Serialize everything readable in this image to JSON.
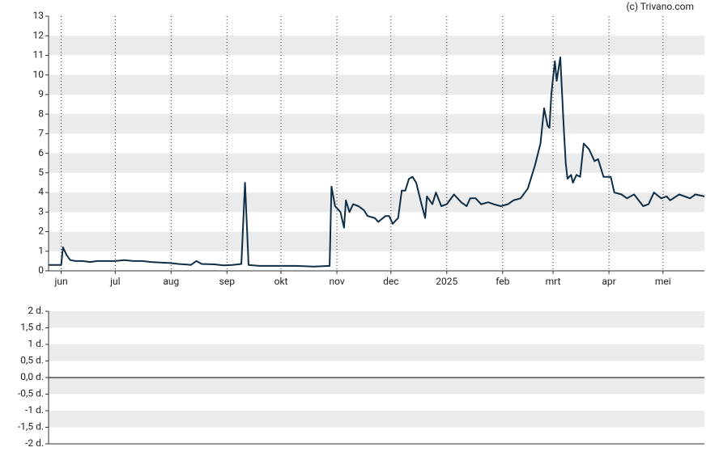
{
  "chart_data": [
    {
      "type": "line",
      "credit": "(c) Trivano.com",
      "x": [
        -7,
        -2,
        0,
        1,
        3,
        5,
        8,
        12,
        16,
        20,
        25,
        30,
        35,
        40,
        45,
        50,
        55,
        60,
        65,
        70,
        72,
        75,
        78,
        85,
        90,
        95,
        100,
        102,
        104,
        110,
        120,
        130,
        140,
        149,
        150,
        152,
        155,
        157,
        158,
        160,
        162,
        165,
        168,
        170,
        174,
        176,
        180,
        182,
        184,
        187,
        189,
        191,
        193,
        195,
        197,
        200,
        202,
        203,
        206,
        208,
        211,
        214,
        218,
        222,
        225,
        227,
        230,
        233,
        237,
        240,
        244,
        248,
        251,
        255,
        259,
        263,
        266,
        268,
        270,
        271,
        272,
        274,
        275,
        277,
        279,
        280,
        281,
        283,
        284,
        286,
        288,
        290,
        293,
        296,
        298,
        301,
        305,
        307,
        311,
        314,
        318,
        323,
        326,
        329,
        333,
        336,
        338,
        343,
        349,
        352,
        357
      ],
      "series": [
        {
          "color": "#0f2f48",
          "values": [
            0.3,
            0.3,
            0.3,
            1.2,
            0.8,
            0.55,
            0.5,
            0.5,
            0.45,
            0.5,
            0.5,
            0.5,
            0.55,
            0.5,
            0.5,
            0.45,
            0.42,
            0.4,
            0.35,
            0.32,
            0.3,
            0.5,
            0.35,
            0.33,
            0.28,
            0.3,
            0.35,
            4.5,
            0.3,
            0.25,
            0.25,
            0.25,
            0.22,
            0.25,
            4.3,
            3.3,
            3.0,
            2.2,
            3.6,
            3.0,
            3.4,
            3.3,
            3.1,
            2.8,
            2.7,
            2.5,
            2.8,
            2.8,
            2.4,
            2.7,
            4.1,
            4.1,
            4.7,
            4.8,
            4.5,
            3.4,
            2.7,
            3.8,
            3.4,
            4.0,
            3.3,
            3.4,
            3.9,
            3.5,
            3.3,
            3.7,
            3.7,
            3.4,
            3.5,
            3.4,
            3.3,
            3.4,
            3.6,
            3.7,
            4.2,
            5.4,
            6.5,
            8.3,
            7.4,
            7.3,
            9.0,
            10.7,
            9.7,
            10.9,
            7.2,
            5.5,
            4.7,
            4.9,
            4.5,
            4.9,
            4.8,
            6.5,
            6.2,
            5.6,
            5.7,
            4.8,
            4.8,
            4.0,
            3.9,
            3.7,
            3.9,
            3.3,
            3.4,
            4.0,
            3.7,
            3.8,
            3.6,
            3.9,
            3.7,
            3.9,
            3.8
          ]
        }
      ],
      "xlim": [
        -7,
        357
      ],
      "xticks": [
        {
          "value": 0,
          "label": "jun"
        },
        {
          "value": 30,
          "label": "jul"
        },
        {
          "value": 61,
          "label": "aug"
        },
        {
          "value": 92,
          "label": "sep"
        },
        {
          "value": 122,
          "label": "okt"
        },
        {
          "value": 153,
          "label": "nov"
        },
        {
          "value": 183,
          "label": "dec"
        },
        {
          "value": 214,
          "label": "2025"
        },
        {
          "value": 245,
          "label": "feb"
        },
        {
          "value": 273,
          "label": "mrt"
        },
        {
          "value": 304,
          "label": "apr"
        },
        {
          "value": 334,
          "label": "mei"
        }
      ],
      "ylim": [
        0,
        13
      ],
      "yticks": [
        0,
        1,
        2,
        3,
        4,
        5,
        6,
        7,
        8,
        9,
        10,
        11,
        12,
        13
      ],
      "grid": true,
      "bands": true
    },
    {
      "type": "line",
      "ylim": [
        -2,
        2
      ],
      "yticks": [
        {
          "value": -2,
          "label": "-2 d."
        },
        {
          "value": -1.5,
          "label": "-1,5 d."
        },
        {
          "value": -1,
          "label": "-1 d."
        },
        {
          "value": -0.5,
          "label": "-0,5 d."
        },
        {
          "value": 0,
          "label": "0,0 d."
        },
        {
          "value": 0.5,
          "label": "0,5 d."
        },
        {
          "value": 1,
          "label": "1 d."
        },
        {
          "value": 1.5,
          "label": "1,5 d."
        },
        {
          "value": 2,
          "label": "2 d."
        }
      ],
      "bands": true,
      "zero_line": true
    }
  ]
}
